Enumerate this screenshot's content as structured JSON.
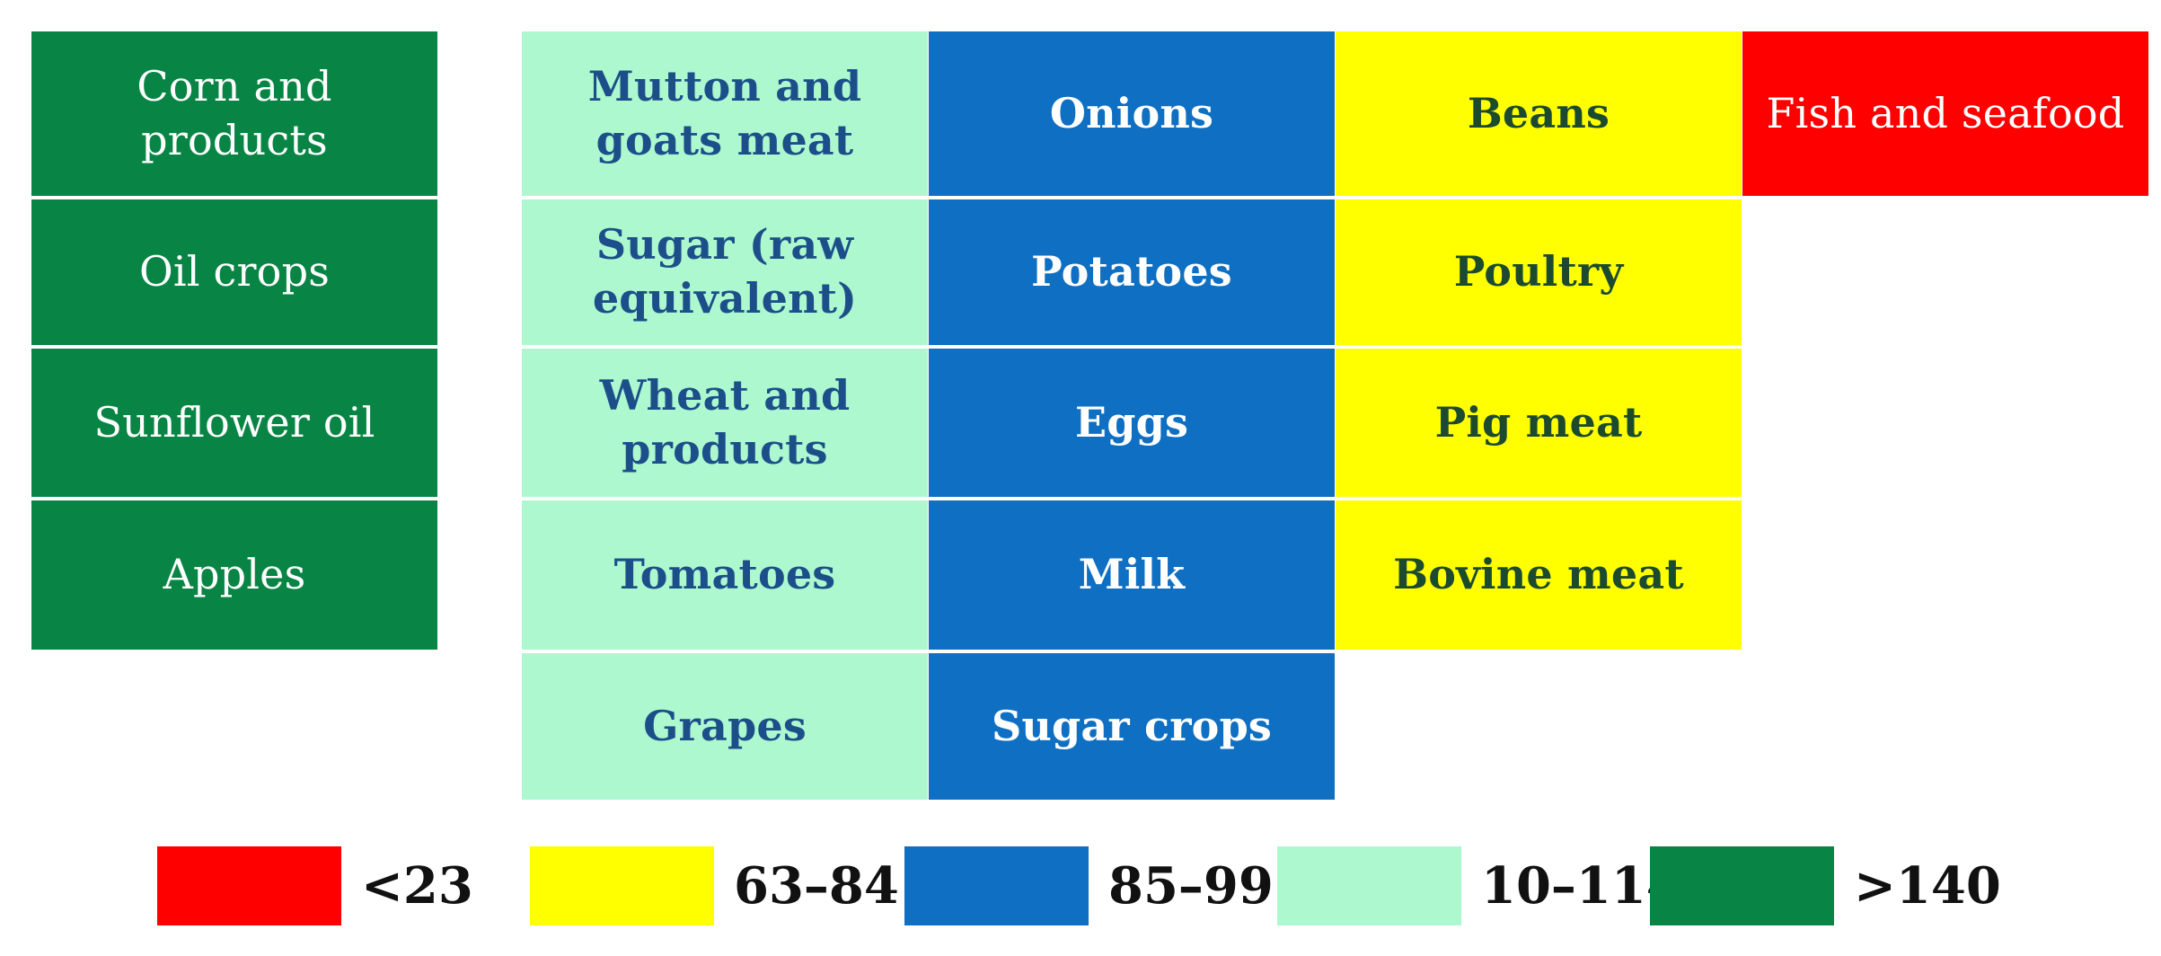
{
  "categories": [
    {
      "color": "#088544",
      "text_color": "#ffffff",
      "legend_label": ">140",
      "items": [
        "Corn and products",
        "Oil crops",
        "Sunflower oil",
        "Apples"
      ]
    },
    {
      "color": "#adf8cf",
      "text_color": "#1c4f8a",
      "legend_label": "10–114",
      "items": [
        "Mutton and\ngoats meat",
        "Sugar (raw\nequivalent)",
        "Wheat and\nproducts",
        "Tomatoes",
        "Grapes"
      ]
    },
    {
      "color": "#0f6fc2",
      "text_color": "#ffffff",
      "legend_label": "85–99",
      "items": [
        "Onions",
        "Potatoes",
        "Eggs",
        "Milk",
        "Sugar crops"
      ]
    },
    {
      "color": "#ffff00",
      "text_color": "#1c4a2e",
      "legend_label": "63–84",
      "items": [
        "Beans",
        "Poultry",
        "Pig meat",
        "Bovine meat"
      ]
    },
    {
      "color": "#ff0000",
      "text_color": "#ffffff",
      "legend_label": "<23",
      "items": [
        "Fish and seafood"
      ]
    }
  ],
  "legend_order": [
    4,
    3,
    2,
    1,
    0
  ]
}
